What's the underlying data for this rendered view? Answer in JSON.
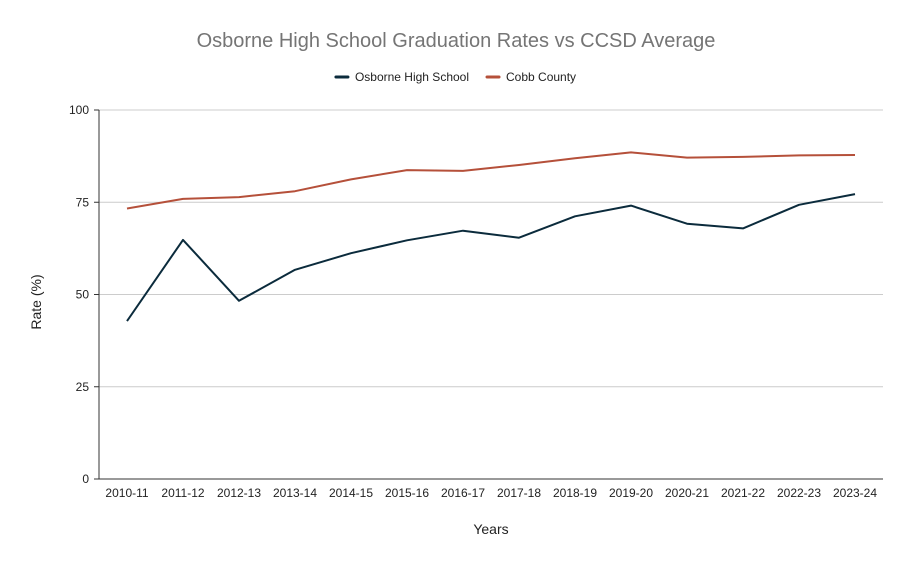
{
  "chart_data": {
    "type": "line",
    "title": "Osborne High School Graduation Rates vs CCSD Average",
    "xlabel": "Years",
    "ylabel": "Rate (%)",
    "ylim": [
      0,
      100
    ],
    "yticks": [
      "0",
      "25",
      "50",
      "75",
      "100"
    ],
    "grid": true,
    "legend_position": "top",
    "categories": [
      "2010-11",
      "2011-12",
      "2012-13",
      "2013-14",
      "2014-15",
      "2015-16",
      "2016-17",
      "2017-18",
      "2018-19",
      "2019-20",
      "2020-21",
      "2021-22",
      "2022-23",
      "2023-24"
    ],
    "series": [
      {
        "name": "Osborne High School",
        "color": "#0b2b3c",
        "values": [
          42.8,
          64.8,
          48.3,
          56.7,
          61.2,
          64.7,
          67.3,
          65.4,
          71.2,
          74.1,
          69.2,
          67.9,
          74.3,
          77.2
        ]
      },
      {
        "name": "Cobb County",
        "color": "#b5503a",
        "values": [
          73.3,
          75.9,
          76.4,
          78.0,
          81.2,
          83.7,
          83.5,
          85.1,
          86.9,
          88.5,
          87.1,
          87.3,
          87.7,
          87.8
        ]
      }
    ]
  }
}
